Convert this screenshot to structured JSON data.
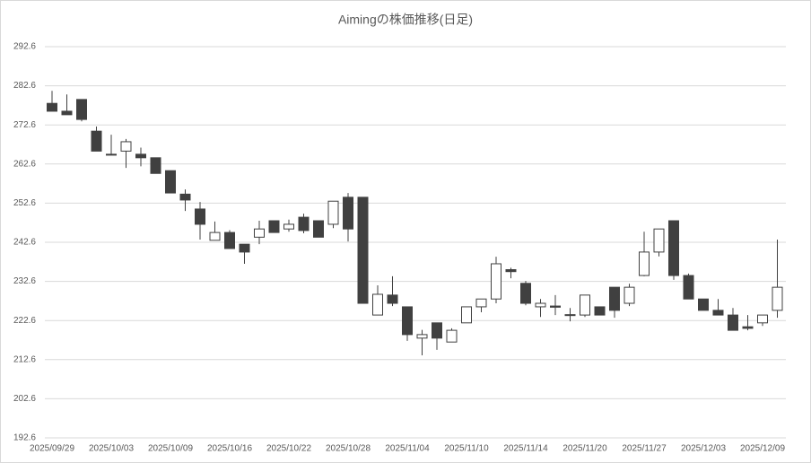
{
  "chart_data": {
    "type": "candlestick",
    "title": "Aimingの株価推移(日足)",
    "categories": [
      "2025/09/29",
      null,
      null,
      null,
      "2025/10/03",
      null,
      null,
      null,
      "2025/10/09",
      null,
      null,
      null,
      "2025/10/16",
      null,
      null,
      null,
      "2025/10/22",
      null,
      null,
      null,
      "2025/10/28",
      null,
      null,
      null,
      "2025/11/04",
      null,
      null,
      null,
      "2025/11/10",
      null,
      null,
      null,
      "2025/11/14",
      null,
      null,
      null,
      "2025/11/20",
      null,
      null,
      null,
      "2025/11/27",
      null,
      null,
      null,
      "2025/12/03",
      null,
      null,
      null,
      "2025/12/09",
      null
    ],
    "open": [
      278.1,
      276.1,
      279.1,
      271.0,
      265.1,
      265.9,
      265.1,
      264.2,
      260.9,
      254.9,
      251.1,
      243.1,
      245.1,
      242.1,
      243.9,
      248.1,
      246.0,
      249.0,
      248.1,
      247.2,
      254.1,
      254.1,
      224.0,
      229.1,
      226.1,
      218.1,
      222.0,
      217.1,
      222.0,
      226.1,
      228.1,
      235.6,
      232.1,
      226.1,
      226.3,
      224.1,
      224.0,
      226.1,
      231.1,
      227.0,
      234.1,
      240.1,
      248.1,
      234.1,
      228.1,
      225.2,
      224.0,
      221.0,
      222.0,
      225.2
    ],
    "high": [
      281.3,
      280.4,
      279.1,
      272.2,
      270.1,
      269.0,
      266.8,
      264.2,
      260.9,
      256.1,
      252.9,
      247.9,
      245.7,
      242.1,
      248.1,
      248.1,
      248.4,
      249.9,
      248.1,
      253.1,
      255.2,
      254.1,
      231.6,
      233.9,
      226.1,
      220.2,
      222.0,
      220.6,
      226.1,
      228.1,
      238.9,
      236.1,
      232.7,
      228.1,
      229.1,
      225.8,
      229.1,
      226.1,
      231.1,
      232.0,
      245.3,
      246.0,
      248.1,
      234.6,
      228.1,
      228.1,
      225.8,
      224.0,
      224.0,
      243.3
    ],
    "low": [
      276.1,
      275.2,
      273.5,
      265.9,
      265.0,
      261.6,
      262.0,
      260.2,
      255.2,
      250.6,
      243.3,
      243.1,
      241.0,
      237.1,
      242.1,
      245.1,
      245.3,
      244.9,
      243.9,
      246.2,
      242.8,
      227.0,
      224.0,
      226.3,
      217.4,
      213.7,
      215.1,
      217.1,
      222.0,
      224.7,
      227.0,
      233.4,
      226.5,
      223.5,
      224.0,
      222.4,
      223.5,
      224.0,
      223.3,
      226.3,
      233.9,
      239.0,
      233.0,
      228.1,
      225.2,
      224.0,
      220.1,
      220.1,
      221.2,
      223.3
    ],
    "close": [
      276.1,
      275.2,
      274.0,
      265.9,
      265.0,
      268.3,
      264.2,
      260.2,
      255.2,
      253.4,
      247.2,
      245.1,
      241.0,
      240.1,
      246.0,
      245.1,
      247.2,
      245.6,
      243.9,
      253.1,
      246.0,
      227.0,
      229.3,
      227.0,
      219.0,
      219.0,
      218.1,
      220.1,
      226.1,
      228.1,
      237.1,
      235.1,
      227.0,
      227.0,
      226.0,
      224.0,
      229.1,
      224.0,
      225.2,
      231.1,
      240.1,
      246.0,
      234.1,
      228.1,
      225.2,
      224.0,
      220.1,
      220.6,
      224.0,
      231.1
    ],
    "up_color": "#ffffff",
    "down_color": "#404040",
    "line_color": "#404040",
    "ylim": [
      192.6,
      292.6
    ],
    "yticks": [
      192.6,
      202.6,
      212.6,
      222.6,
      232.6,
      242.6,
      252.6,
      262.6,
      272.6,
      282.6,
      292.6
    ],
    "grid": true
  }
}
